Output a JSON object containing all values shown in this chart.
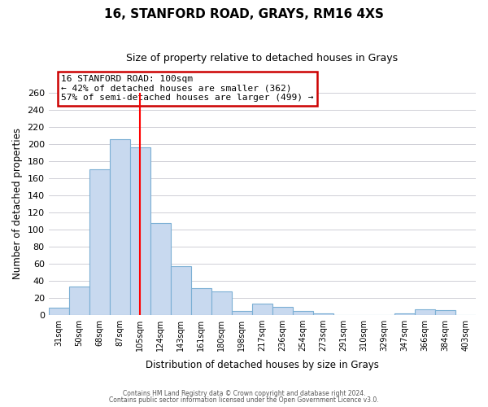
{
  "title": "16, STANFORD ROAD, GRAYS, RM16 4XS",
  "subtitle": "Size of property relative to detached houses in Grays",
  "xlabel": "Distribution of detached houses by size in Grays",
  "ylabel": "Number of detached properties",
  "bar_labels": [
    "31sqm",
    "50sqm",
    "68sqm",
    "87sqm",
    "105sqm",
    "124sqm",
    "143sqm",
    "161sqm",
    "180sqm",
    "198sqm",
    "217sqm",
    "236sqm",
    "254sqm",
    "273sqm",
    "291sqm",
    "310sqm",
    "329sqm",
    "347sqm",
    "366sqm",
    "384sqm",
    "403sqm"
  ],
  "bar_values": [
    8,
    33,
    170,
    206,
    196,
    107,
    57,
    31,
    27,
    4,
    13,
    9,
    4,
    2,
    0,
    0,
    0,
    2,
    6,
    5,
    0
  ],
  "ylim": [
    0,
    260
  ],
  "yticks": [
    0,
    20,
    40,
    60,
    80,
    100,
    120,
    140,
    160,
    180,
    200,
    220,
    240,
    260
  ],
  "bar_color": "#c8d9ef",
  "bar_edge_color": "#7bafd4",
  "red_line_index": 4,
  "annotation_title": "16 STANFORD ROAD: 100sqm",
  "annotation_line1": "← 42% of detached houses are smaller (362)",
  "annotation_line2": "57% of semi-detached houses are larger (499) →",
  "annotation_box_color": "#ffffff",
  "annotation_box_edge": "#cc0000",
  "footer_line1": "Contains HM Land Registry data © Crown copyright and database right 2024.",
  "footer_line2": "Contains public sector information licensed under the Open Government Licence v3.0.",
  "background_color": "#ffffff",
  "grid_color": "#c8c8d0"
}
